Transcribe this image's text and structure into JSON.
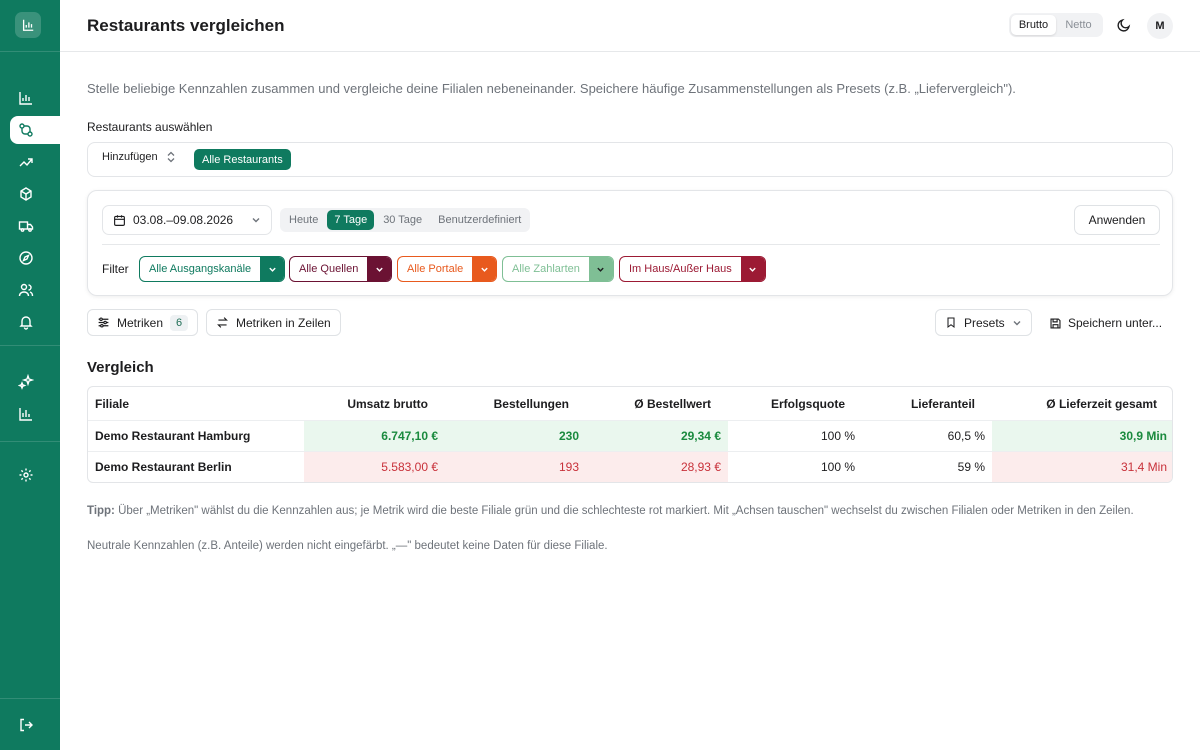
{
  "header": {
    "title": "Restaurants vergleichen",
    "toggle": {
      "gross": "Brutto",
      "net": "Netto",
      "selected": "Brutto"
    },
    "avatar": "M"
  },
  "sidebar": {
    "items": [
      {
        "icon": "bar-chart-icon",
        "active": false
      },
      {
        "icon": "compare-icon",
        "active": true
      },
      {
        "icon": "trending-up-icon",
        "active": false
      },
      {
        "icon": "box-icon",
        "active": false
      },
      {
        "icon": "truck-icon",
        "active": false
      },
      {
        "icon": "compass-icon",
        "active": false
      },
      {
        "icon": "users-icon",
        "active": false
      },
      {
        "icon": "bell-icon",
        "active": false
      },
      {
        "icon": "sparkles-icon",
        "active": false
      },
      {
        "icon": "chart-icon",
        "active": false
      },
      {
        "icon": "gear-icon",
        "active": false
      }
    ],
    "logout_icon": "logout-icon"
  },
  "intro": "Stelle beliebige Kennzahlen zusammen und vergleiche deine Filialen nebeneinander. Speichere häufige Zusammenstellungen als Presets (z.B. „Liefervergleich\").",
  "restaurant_select": {
    "label": "Restaurants auswählen",
    "add_label": "Hinzufügen",
    "chip": "Alle Restaurants"
  },
  "date_filter": {
    "range": "03.08.–09.08.2026",
    "options": [
      "Heute",
      "7 Tage",
      "30 Tage",
      "Benutzerdefiniert"
    ],
    "selected": "7 Tage",
    "apply_label": "Anwenden"
  },
  "filters": {
    "label": "Filter",
    "items": [
      {
        "label": "Alle Ausgangskanäle",
        "color": "#0f7a5f"
      },
      {
        "label": "Alle Quellen",
        "color": "#6b1233"
      },
      {
        "label": "Alle Portale",
        "color": "#e85a1e"
      },
      {
        "label": "Alle Zahlarten",
        "color": "#7fbf95"
      },
      {
        "label": "Im Haus/Außer Haus",
        "color": "#9c1a34"
      }
    ]
  },
  "toolbar": {
    "metrics_label": "Metriken",
    "metrics_count": "6",
    "swap_label": "Metriken in Zeilen",
    "presets_label": "Presets",
    "save_label": "Speichern unter..."
  },
  "comparison": {
    "title": "Vergleich",
    "columns": [
      "Filiale",
      "Umsatz brutto",
      "Bestellungen",
      "Ø Bestellwert",
      "Erfolgsquote",
      "Lieferanteil",
      "Ø Lieferzeit gesamt"
    ],
    "rows": [
      {
        "cells": [
          "Demo Restaurant Hamburg",
          "6.747,10 €",
          "230",
          "29,34 €",
          "100 %",
          "60,5 %",
          "30,9 Min"
        ]
      },
      {
        "cells": [
          "Demo Restaurant Berlin",
          "5.583,00 €",
          "193",
          "28,93 €",
          "100 %",
          "59 %",
          "31,4 Min"
        ]
      }
    ]
  },
  "hint": {
    "lead": "Tipp:",
    "text": " Über „Metriken\" wählst du die Kennzahlen aus; je Metrik wird die beste Filiale grün und die schlechteste rot markiert. Mit „Achsen tauschen\" wechselst du zwischen Filialen oder Metriken in den Zeilen.",
    "text2": "Neutrale Kennzahlen (z.B. Anteile) werden nicht eingefärbt. „—\" bedeutet keine Daten für diese Filiale."
  },
  "colors": {
    "brand": "#0f7a5f",
    "good_bg": "#eaf7ee",
    "good_text": "#1a8a3e",
    "bad_bg": "#fcecec",
    "bad_text": "#c8313a"
  }
}
